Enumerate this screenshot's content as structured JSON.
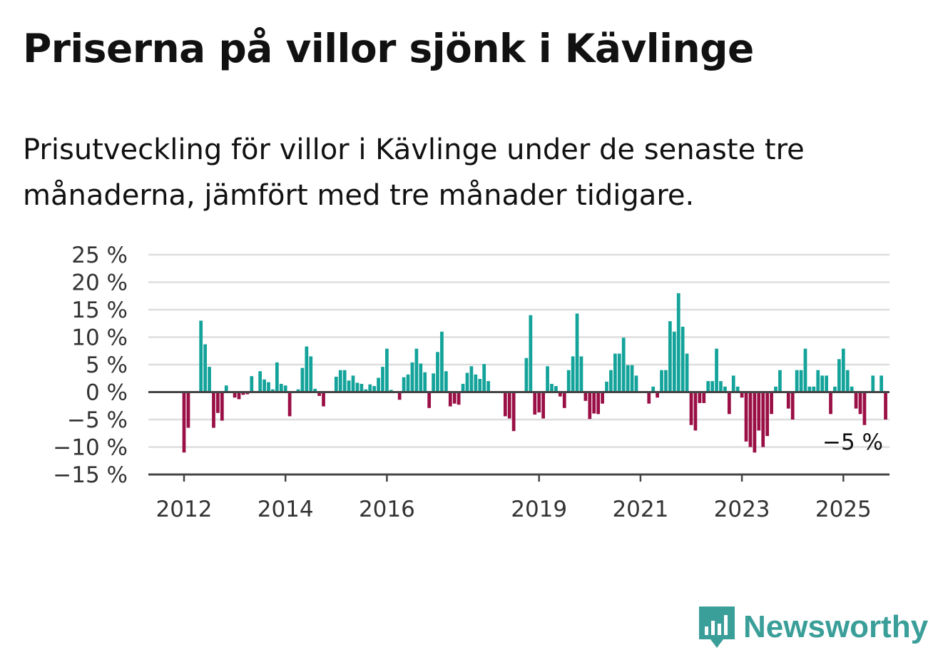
{
  "header": {
    "title": "Priserna på villor sjönk i Kävlinge",
    "subtitle": "Prisutveckling för villor i Kävlinge under de senaste tre månaderna, jämfört med tre månader tidigare."
  },
  "brand": {
    "name": "Newsworthy",
    "color": "#3a9e99",
    "icon": "newsworthy-logo-icon"
  },
  "colors": {
    "positive": "#13a39a",
    "negative": "#9a0f45",
    "grid": "#dddddd",
    "axis": "#444444"
  },
  "chart_data": {
    "type": "bar",
    "title": "Priserna på villor sjönk i Kävlinge",
    "subtitle": "Prisutveckling för villor i Kävlinge under de senaste tre månaderna, jämfört med tre månader tidigare.",
    "xlabel": "",
    "ylabel": "",
    "ylim": [
      -15,
      25
    ],
    "y_ticks": [
      25,
      20,
      15,
      10,
      5,
      0,
      -5,
      -10,
      -15
    ],
    "y_tick_labels": [
      "25 %",
      "20 %",
      "15 %",
      "10 %",
      "5 %",
      "0 %",
      "−5 %",
      "−10 %",
      "−15 %"
    ],
    "x_start": "2012-01",
    "x_ticks": [
      {
        "label": "2012",
        "date": "2012-01"
      },
      {
        "label": "2014",
        "date": "2014-01"
      },
      {
        "label": "2016",
        "date": "2016-01"
      },
      {
        "label": "2019",
        "date": "2019-01"
      },
      {
        "label": "2021",
        "date": "2021-01"
      },
      {
        "label": "2023",
        "date": "2023-01"
      },
      {
        "label": "2025",
        "date": "2025-01"
      }
    ],
    "grid": true,
    "last_value_label": "−5 %",
    "values": [
      -11,
      -6.5,
      0,
      0,
      13,
      8.7,
      4.6,
      -6.5,
      -3.8,
      -5.2,
      1.2,
      0,
      -1,
      -1.3,
      -0.5,
      -0.4,
      2.9,
      0,
      3.8,
      2.3,
      1.8,
      0.5,
      5.4,
      1.5,
      1.2,
      -4.4,
      0,
      0.5,
      4.4,
      8.3,
      6.5,
      0.6,
      -0.7,
      -2.6,
      0,
      0,
      2.8,
      4,
      4,
      2.1,
      3,
      1.7,
      1.5,
      0.5,
      1.4,
      1.1,
      2.6,
      4.6,
      7.9,
      0.4,
      0,
      -1.4,
      2.7,
      3.2,
      5.4,
      7.9,
      5.2,
      3.6,
      -2.9,
      3.4,
      7.3,
      11,
      3.8,
      -2.6,
      -2.1,
      -2.3,
      1.5,
      3.5,
      4.7,
      3.2,
      2.4,
      5.1,
      2,
      0,
      0,
      0,
      -4.4,
      -4.8,
      -7.1,
      0,
      0,
      6.2,
      14,
      -4.1,
      -3.7,
      -4.8,
      4.7,
      1.5,
      1.1,
      -0.8,
      -2.9,
      4,
      6.5,
      14.3,
      6.5,
      -1.6,
      -4.9,
      -3.9,
      -4,
      -2.1,
      1.9,
      4,
      7,
      7,
      9.9,
      4.9,
      4.9,
      3,
      0,
      0,
      -2.1,
      1,
      -1,
      4,
      4,
      12.9,
      11,
      18,
      11.9,
      7,
      -6,
      -7,
      -2,
      -2,
      2,
      2,
      7.9,
      2,
      1,
      -4,
      3,
      1,
      -1,
      -9,
      -10,
      -11,
      -7,
      -10,
      -8,
      -4,
      1,
      4,
      0,
      -3,
      -5,
      4,
      4,
      7.9,
      1,
      1,
      4,
      3,
      3,
      -4,
      1,
      6,
      7.9,
      4,
      1,
      -3,
      -4,
      -6,
      0,
      3,
      0,
      3,
      -5
    ]
  }
}
